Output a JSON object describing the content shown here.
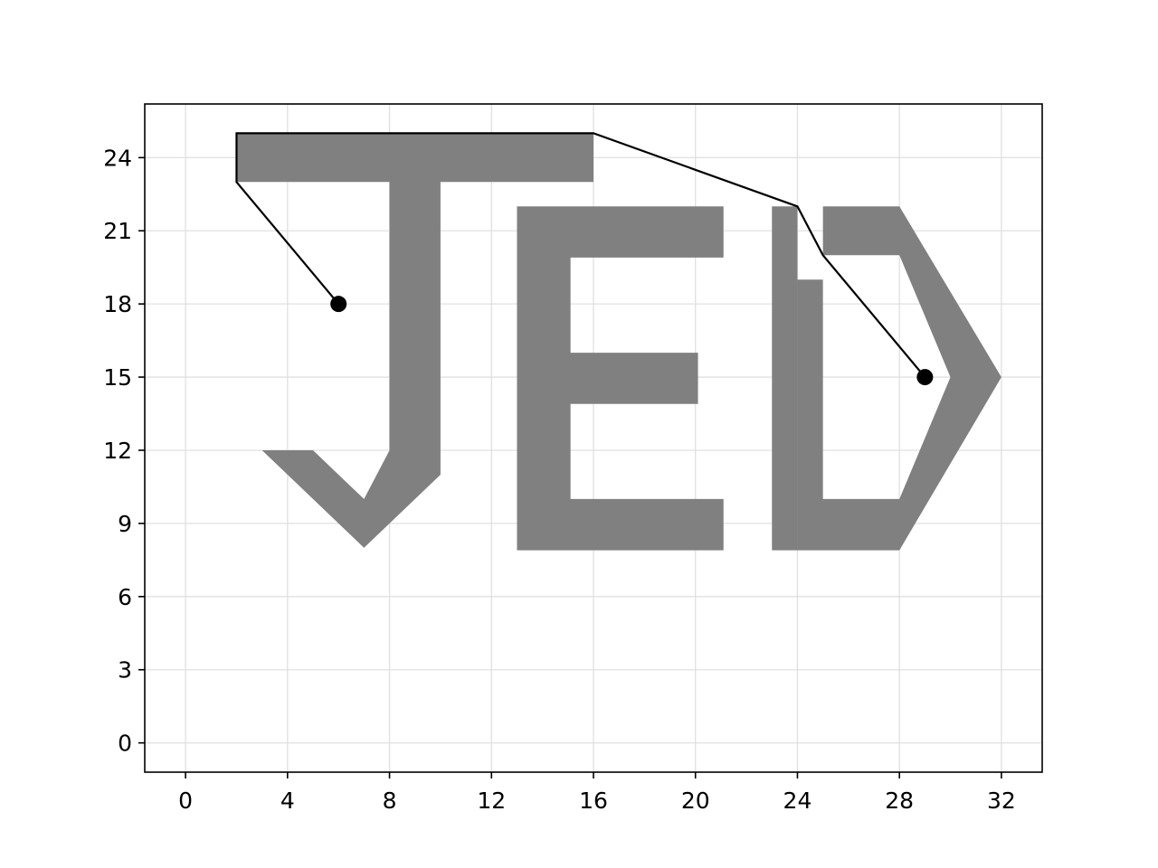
{
  "chart_data": {
    "type": "scatter",
    "title": "",
    "xlabel": "",
    "ylabel": "",
    "xlim": [
      -1.6,
      33.6
    ],
    "ylim": [
      -1.2,
      26.2
    ],
    "xticks": [
      0,
      4,
      8,
      12,
      16,
      20,
      24,
      28,
      32
    ],
    "yticks": [
      0,
      3,
      6,
      9,
      12,
      15,
      18,
      21,
      24
    ],
    "grid": true,
    "fill_color": "#808080",
    "line_color": "#000000",
    "shapes": [
      {
        "name": "letter-J",
        "points": [
          [
            2,
            25
          ],
          [
            16,
            25
          ],
          [
            16,
            23
          ],
          [
            10,
            23
          ],
          [
            10,
            11
          ],
          [
            7,
            8
          ],
          [
            3,
            12
          ],
          [
            5,
            12
          ],
          [
            7,
            10
          ],
          [
            8,
            12
          ],
          [
            8,
            23
          ],
          [
            2,
            23
          ]
        ]
      },
      {
        "name": "letter-E",
        "points": [
          [
            13,
            22
          ],
          [
            21.1,
            22
          ],
          [
            21.1,
            19.9
          ],
          [
            15.1,
            19.9
          ],
          [
            15.1,
            16
          ],
          [
            20.1,
            16
          ],
          [
            20.1,
            13.9
          ],
          [
            15.1,
            13.9
          ],
          [
            15.1,
            10
          ],
          [
            21.1,
            10
          ],
          [
            21.1,
            7.9
          ],
          [
            13,
            7.9
          ]
        ]
      },
      {
        "name": "letter-D-bar",
        "points": [
          [
            23,
            22
          ],
          [
            24,
            22
          ],
          [
            24,
            7.9
          ],
          [
            23,
            7.9
          ]
        ]
      },
      {
        "name": "letter-D-body",
        "points": [
          [
            24,
            19
          ],
          [
            25,
            19
          ],
          [
            25,
            10
          ],
          [
            28,
            10
          ],
          [
            30,
            15
          ],
          [
            28,
            20
          ],
          [
            25,
            20
          ],
          [
            25,
            22
          ],
          [
            28,
            22
          ],
          [
            32,
            15
          ],
          [
            28,
            7.9
          ],
          [
            24,
            7.9
          ]
        ]
      }
    ],
    "path": [
      [
        6,
        18
      ],
      [
        2,
        23
      ],
      [
        2,
        25
      ],
      [
        16,
        25
      ],
      [
        24,
        22
      ],
      [
        25,
        20
      ],
      [
        29,
        15
      ]
    ],
    "points": [
      [
        6,
        18
      ],
      [
        29,
        15
      ]
    ]
  }
}
